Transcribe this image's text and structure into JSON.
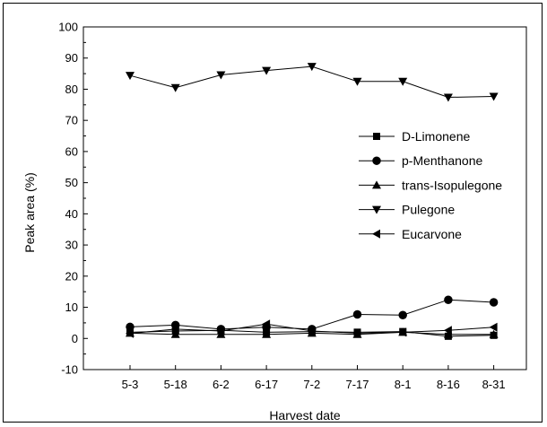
{
  "chart_data": {
    "type": "line",
    "xlabel": "Harvest date",
    "ylabel": "Peak area (%)",
    "categories": [
      "5-3",
      "5-18",
      "6-2",
      "6-17",
      "7-2",
      "7-17",
      "8-1",
      "8-16",
      "8-31"
    ],
    "ylim": [
      -10,
      100
    ],
    "yticks": [
      -10,
      0,
      10,
      20,
      30,
      40,
      50,
      60,
      70,
      80,
      90,
      100
    ],
    "grid": false,
    "legend_position": "right",
    "series": [
      {
        "name": "D-Limonene",
        "marker": "square",
        "values": [
          2.0,
          2.4,
          2.6,
          2.0,
          2.2,
          2.0,
          2.2,
          0.7,
          1.0
        ]
      },
      {
        "name": "p-Menthanone",
        "marker": "circle",
        "values": [
          3.7,
          4.3,
          3.0,
          3.6,
          3.0,
          7.7,
          7.5,
          12.4,
          11.6
        ]
      },
      {
        "name": "trans-Isopulegone",
        "marker": "triangle-up",
        "values": [
          1.7,
          1.3,
          1.3,
          1.3,
          1.7,
          1.3,
          2.0,
          1.3,
          1.3
        ]
      },
      {
        "name": "Pulegone",
        "marker": "triangle-down",
        "values": [
          84.4,
          80.5,
          84.6,
          86.0,
          87.3,
          82.5,
          82.5,
          77.4,
          77.7
        ]
      },
      {
        "name": "Eucarvone",
        "marker": "triangle-left",
        "values": [
          1.6,
          3.0,
          2.4,
          4.6,
          2.4,
          1.7,
          2.0,
          2.6,
          3.6
        ]
      }
    ]
  }
}
